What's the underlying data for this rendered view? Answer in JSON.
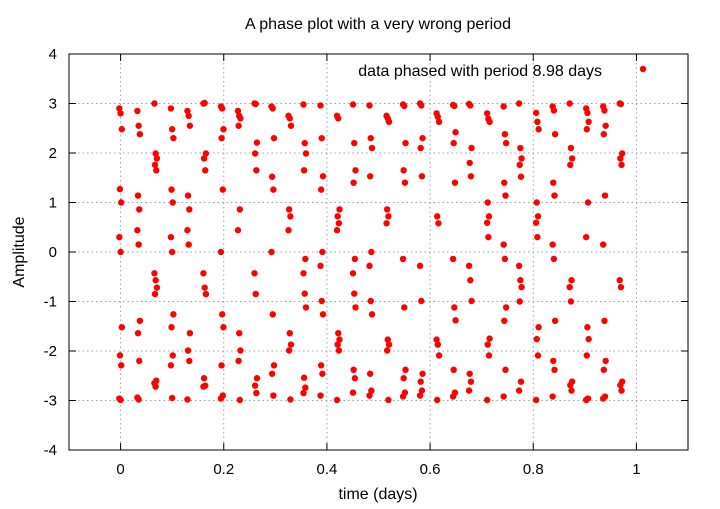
{
  "chart_data": {
    "type": "scatter",
    "title": "A phase plot with a very wrong period",
    "xlabel": "time (days)",
    "ylabel": "Amplitude",
    "xlim": [
      -0.1,
      1.1
    ],
    "ylim": [
      -4,
      4
    ],
    "xticks": [
      0,
      0.2,
      0.4,
      0.6,
      0.8,
      1
    ],
    "xtick_labels": [
      "0",
      "0.2",
      "0.4",
      "0.6",
      "0.8",
      "1"
    ],
    "yticks": [
      -4,
      -3,
      -2,
      -1,
      0,
      1,
      2,
      3,
      4
    ],
    "ytick_labels": [
      "-4",
      "-3",
      "-2",
      "-1",
      "0",
      "1",
      "2",
      "3",
      "4"
    ],
    "grid": true,
    "legend_position": "top-right",
    "series": [
      {
        "name": "data phased with period 8.98 days",
        "color": "#ff0000",
        "columns": [
          {
            "x": 0.0,
            "y": [
              2.9,
              2.8,
              2.48,
              1.27,
              1.0,
              0.3,
              0,
              -1.52,
              -2.09,
              -2.29,
              -2.96,
              -2.99
            ]
          },
          {
            "x": 0.035,
            "y": [
              2.85,
              2.55,
              2.38,
              1.14,
              0.86,
              0.44,
              0.15,
              -1.39,
              -1.64,
              -2.2,
              -2.94,
              -2.98
            ]
          },
          {
            "x": 0.068,
            "y": [
              3.0,
              1.99,
              1.89,
              1.76,
              1.65,
              -0.43,
              -0.57,
              -0.72,
              -0.85,
              -2.6,
              -2.65,
              -2.72
            ]
          },
          {
            "x": 0.1,
            "y": [
              2.9,
              2.48,
              2.3,
              1.26,
              1.0,
              0.3,
              0,
              -1.26,
              -1.52,
              -2.09,
              -2.29,
              -2.95
            ]
          },
          {
            "x": 0.132,
            "y": [
              2.85,
              2.75,
              2.55,
              1.14,
              0.86,
              0.44,
              0.15,
              -1.64,
              -1.99,
              -2.2,
              -2.98
            ]
          },
          {
            "x": 0.163,
            "y": [
              3.0,
              3.01,
              1.99,
              1.89,
              1.65,
              -0.43,
              -0.72,
              -0.85,
              -2.55,
              -2.7,
              -2.72
            ]
          },
          {
            "x": 0.197,
            "y": [
              2.94,
              2.9,
              2.48,
              2.3,
              1.26,
              0,
              -1.26,
              -1.52,
              -2.29,
              -2.9,
              -2.96
            ]
          },
          {
            "x": 0.23,
            "y": [
              2.85,
              2.75,
              2.7,
              2.55,
              0.86,
              0.44,
              -1.64,
              -1.99,
              -2.2,
              -2.99
            ]
          },
          {
            "x": 0.262,
            "y": [
              3.0,
              2.99,
              2.21,
              1.99,
              1.65,
              -0.43,
              -0.85,
              -2.55,
              -2.7,
              -2.85
            ]
          },
          {
            "x": 0.295,
            "y": [
              2.94,
              2.9,
              2.3,
              1.52,
              1.26,
              0,
              -1.26,
              -2.29,
              -2.46,
              -2.9
            ]
          },
          {
            "x": 0.328,
            "y": [
              2.75,
              2.7,
              2.55,
              0.86,
              0.72,
              0.44,
              -1.64,
              -1.87,
              -1.99,
              -2.98
            ]
          },
          {
            "x": 0.357,
            "y": [
              2.98,
              2.2,
              1.99,
              1.65,
              -0.14,
              -0.43,
              -0.84,
              -1.12,
              -2.54,
              -2.74,
              -2.85
            ]
          },
          {
            "x": 0.39,
            "y": [
              2.96,
              2.3,
              1.53,
              1.26,
              0,
              -0.28,
              -0.99,
              -1.26,
              -2.29,
              -2.46,
              -2.9
            ]
          },
          {
            "x": 0.422,
            "y": [
              2.75,
              2.7,
              0.86,
              0.72,
              0.58,
              0.44,
              -1.64,
              -1.77,
              -1.87,
              -1.99,
              -2.99
            ]
          },
          {
            "x": 0.453,
            "y": [
              2.98,
              2.2,
              1.65,
              1.4,
              -0.14,
              -0.43,
              -0.84,
              -1.12,
              -2.38,
              -2.55,
              -2.84
            ]
          },
          {
            "x": 0.485,
            "y": [
              2.96,
              2.3,
              2.1,
              1.53,
              0,
              -0.28,
              -0.99,
              -1.26,
              -2.46,
              -2.8,
              -2.9
            ]
          },
          {
            "x": 0.518,
            "y": [
              2.75,
              2.7,
              2.63,
              0.86,
              0.72,
              0.58,
              -1.77,
              -1.87,
              -1.99,
              -2.99
            ]
          },
          {
            "x": 0.55,
            "y": [
              2.98,
              2.95,
              2.2,
              1.65,
              1.4,
              -0.14,
              -1.12,
              -2.38,
              -2.55,
              -2.84,
              -2.92
            ]
          },
          {
            "x": 0.583,
            "y": [
              3.0,
              2.96,
              2.3,
              2.1,
              1.53,
              -0.28,
              -0.99,
              -2.46,
              -2.62,
              -2.8,
              -2.9
            ]
          },
          {
            "x": 0.615,
            "y": [
              2.8,
              2.73,
              2.63,
              0.72,
              0.58,
              -1.77,
              -1.87,
              -2.09,
              -2.99
            ]
          },
          {
            "x": 0.647,
            "y": [
              2.97,
              2.95,
              2.42,
              2.2,
              1.4,
              -0.14,
              -1.12,
              -1.38,
              -2.38,
              -2.84,
              -2.92
            ]
          },
          {
            "x": 0.678,
            "y": [
              2.99,
              2.96,
              2.1,
              1.8,
              1.53,
              -0.28,
              -0.57,
              -0.99,
              -2.46,
              -2.62,
              -2.8
            ]
          },
          {
            "x": 0.713,
            "y": [
              2.8,
              2.69,
              2.63,
              1.0,
              0.72,
              0.59,
              0.3,
              -1.75,
              -1.87,
              -2.09,
              -2.99
            ]
          },
          {
            "x": 0.745,
            "y": [
              2.94,
              2.38,
              2.2,
              1.4,
              1.14,
              0.15,
              -0.14,
              -1.12,
              -1.39,
              -2.38,
              -2.92
            ]
          },
          {
            "x": 0.775,
            "y": [
              3.0,
              2.1,
              1.89,
              1.76,
              1.52,
              -0.28,
              -0.57,
              -0.71,
              -1.0,
              -2.62,
              -2.8
            ]
          },
          {
            "x": 0.808,
            "y": [
              2.81,
              2.63,
              2.48,
              1.0,
              0.72,
              0.59,
              0.3,
              -1.52,
              -1.76,
              -2.09,
              -2.99
            ]
          },
          {
            "x": 0.84,
            "y": [
              2.94,
              2.86,
              2.38,
              1.4,
              1.14,
              0.15,
              -0.14,
              -1.39,
              -2.2,
              -2.38,
              -2.92
            ]
          },
          {
            "x": 0.873,
            "y": [
              3.0,
              2.1,
              1.89,
              1.76,
              -0.57,
              -0.71,
              -1.0,
              -2.62,
              -2.69,
              -2.8
            ]
          },
          {
            "x": 0.905,
            "y": [
              2.9,
              2.81,
              2.63,
              2.48,
              1.0,
              0.3,
              -1.52,
              -1.76,
              -2.09,
              -2.96,
              -2.99
            ]
          },
          {
            "x": 0.938,
            "y": [
              2.94,
              2.86,
              2.55,
              2.38,
              1.14,
              0.15,
              -1.39,
              -2.2,
              -2.38,
              -2.92,
              -2.96
            ]
          },
          {
            "x": 0.97,
            "y": [
              3.0,
              2.99,
              1.99,
              1.89,
              1.76,
              -0.57,
              -0.71,
              -2.62,
              -2.69,
              -2.8
            ]
          }
        ]
      }
    ]
  }
}
